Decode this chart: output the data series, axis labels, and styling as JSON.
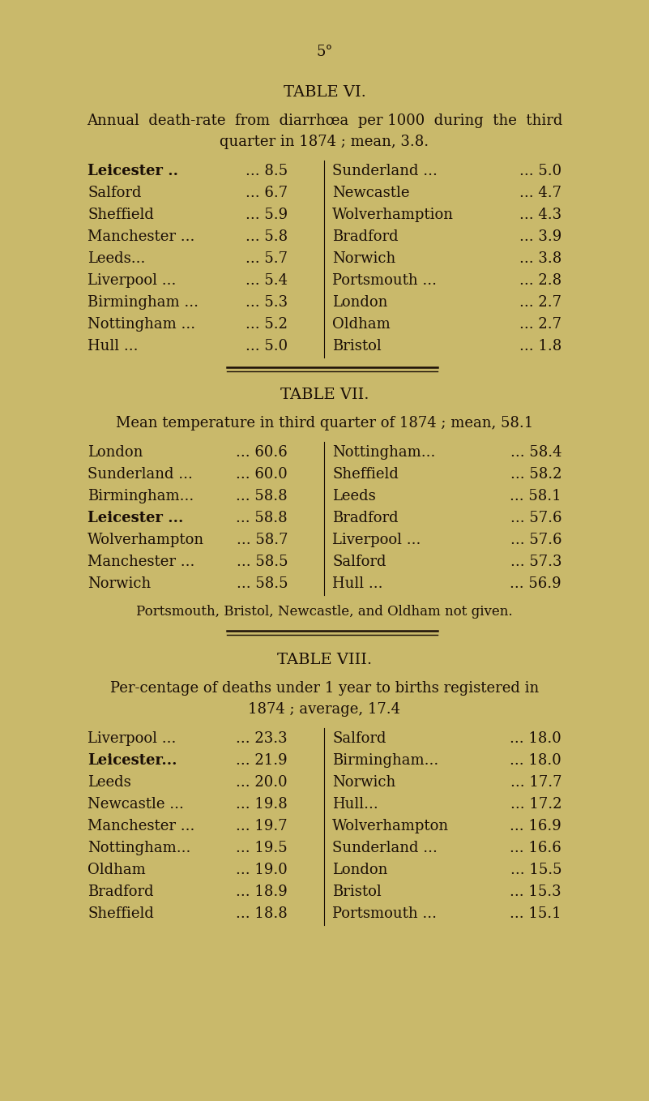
{
  "bg_color": "#c9b96b",
  "text_color": "#1a0e06",
  "page_number": "5°",
  "table6": {
    "title": "TABLE VI.",
    "subtitle1": "Annual  death-rate  from  diarrhœa  per 1000  during  the  third",
    "subtitle2": "quarter in 1874 ; mean, 3.8.",
    "left_col": [
      [
        "Leicester ..",
        "... 8.5",
        true
      ],
      [
        "Salford",
        "... 6.7",
        false
      ],
      [
        "Sheffield",
        "... 5.9",
        false
      ],
      [
        "Manchester ...",
        "... 5.8",
        false
      ],
      [
        "Leeds...",
        "... 5.7",
        false
      ],
      [
        "Liverpool ...",
        "... 5.4",
        false
      ],
      [
        "Birmingham ...",
        "... 5.3",
        false
      ],
      [
        "Nottingham ...",
        "... 5.2",
        false
      ],
      [
        "Hull ...",
        "... 5.0",
        false
      ]
    ],
    "right_col": [
      [
        "Sunderland ...",
        "... 5.0",
        false
      ],
      [
        "Newcastle",
        "... 4.7",
        false
      ],
      [
        "Wolverhamption",
        "... 4.3",
        false
      ],
      [
        "Bradford",
        "... 3.9",
        false
      ],
      [
        "Norwich",
        "... 3.8",
        false
      ],
      [
        "Portsmouth ...",
        "... 2.8",
        false
      ],
      [
        "London",
        "... 2.7",
        false
      ],
      [
        "Oldham",
        "... 2.7",
        false
      ],
      [
        "Bristol",
        "... 1.8",
        false
      ]
    ]
  },
  "table7": {
    "title": "TABLE VII.",
    "subtitle": "Mean temperature in third quarter of 1874 ; mean, 58.1",
    "left_col": [
      [
        "London",
        "... 60.6",
        false
      ],
      [
        "Sunderland ...",
        "... 60.0",
        false
      ],
      [
        "Birmingham...",
        "... 58.8",
        false
      ],
      [
        "Leicester ...",
        "... 58.8",
        true
      ],
      [
        "Wolverhampton",
        "... 58.7",
        false
      ],
      [
        "Manchester ...",
        "... 58.5",
        false
      ],
      [
        "Norwich",
        "... 58.5",
        false
      ]
    ],
    "right_col": [
      [
        "Nottingham...",
        "... 58.4",
        false
      ],
      [
        "Sheffield",
        "... 58.2",
        false
      ],
      [
        "Leeds",
        "... 58.1",
        false
      ],
      [
        "Bradford",
        "... 57.6",
        false
      ],
      [
        "Liverpool ...",
        "... 57.6",
        false
      ],
      [
        "Salford",
        "... 57.3",
        false
      ],
      [
        "Hull ...",
        "... 56.9",
        false
      ]
    ],
    "footnote": "Portsmouth, Bristol, Newcastle, and Oldham not given."
  },
  "table8": {
    "title": "TABLE VIII.",
    "subtitle1": "Per-centage of deaths under 1 year to births registered in",
    "subtitle2": "1874 ; average, 17.4",
    "left_col": [
      [
        "Liverpool ...",
        "... 23.3",
        false
      ],
      [
        "Leicester...",
        "... 21.9",
        true
      ],
      [
        "Leeds",
        "... 20.0",
        false
      ],
      [
        "Newcastle ...",
        "... 19.8",
        false
      ],
      [
        "Manchester ...",
        "... 19.7",
        false
      ],
      [
        "Nottingham...",
        "... 19.5",
        false
      ],
      [
        "Oldham",
        "... 19.0",
        false
      ],
      [
        "Bradford",
        "... 18.9",
        false
      ],
      [
        "Sheffield",
        "... 18.8",
        false
      ]
    ],
    "right_col": [
      [
        "Salford",
        "... 18.0",
        false
      ],
      [
        "Birmingham...",
        "... 18.0",
        false
      ],
      [
        "Norwich",
        "... 17.7",
        false
      ],
      [
        "Hull...",
        "... 17.2",
        false
      ],
      [
        "Wolverhampton",
        "... 16.9",
        false
      ],
      [
        "Sunderland ...",
        "... 16.6",
        false
      ],
      [
        "London",
        "... 15.5",
        false
      ],
      [
        "Bristol",
        "... 15.3",
        false
      ],
      [
        "Portsmouth ...",
        "... 15.1",
        false
      ]
    ]
  }
}
